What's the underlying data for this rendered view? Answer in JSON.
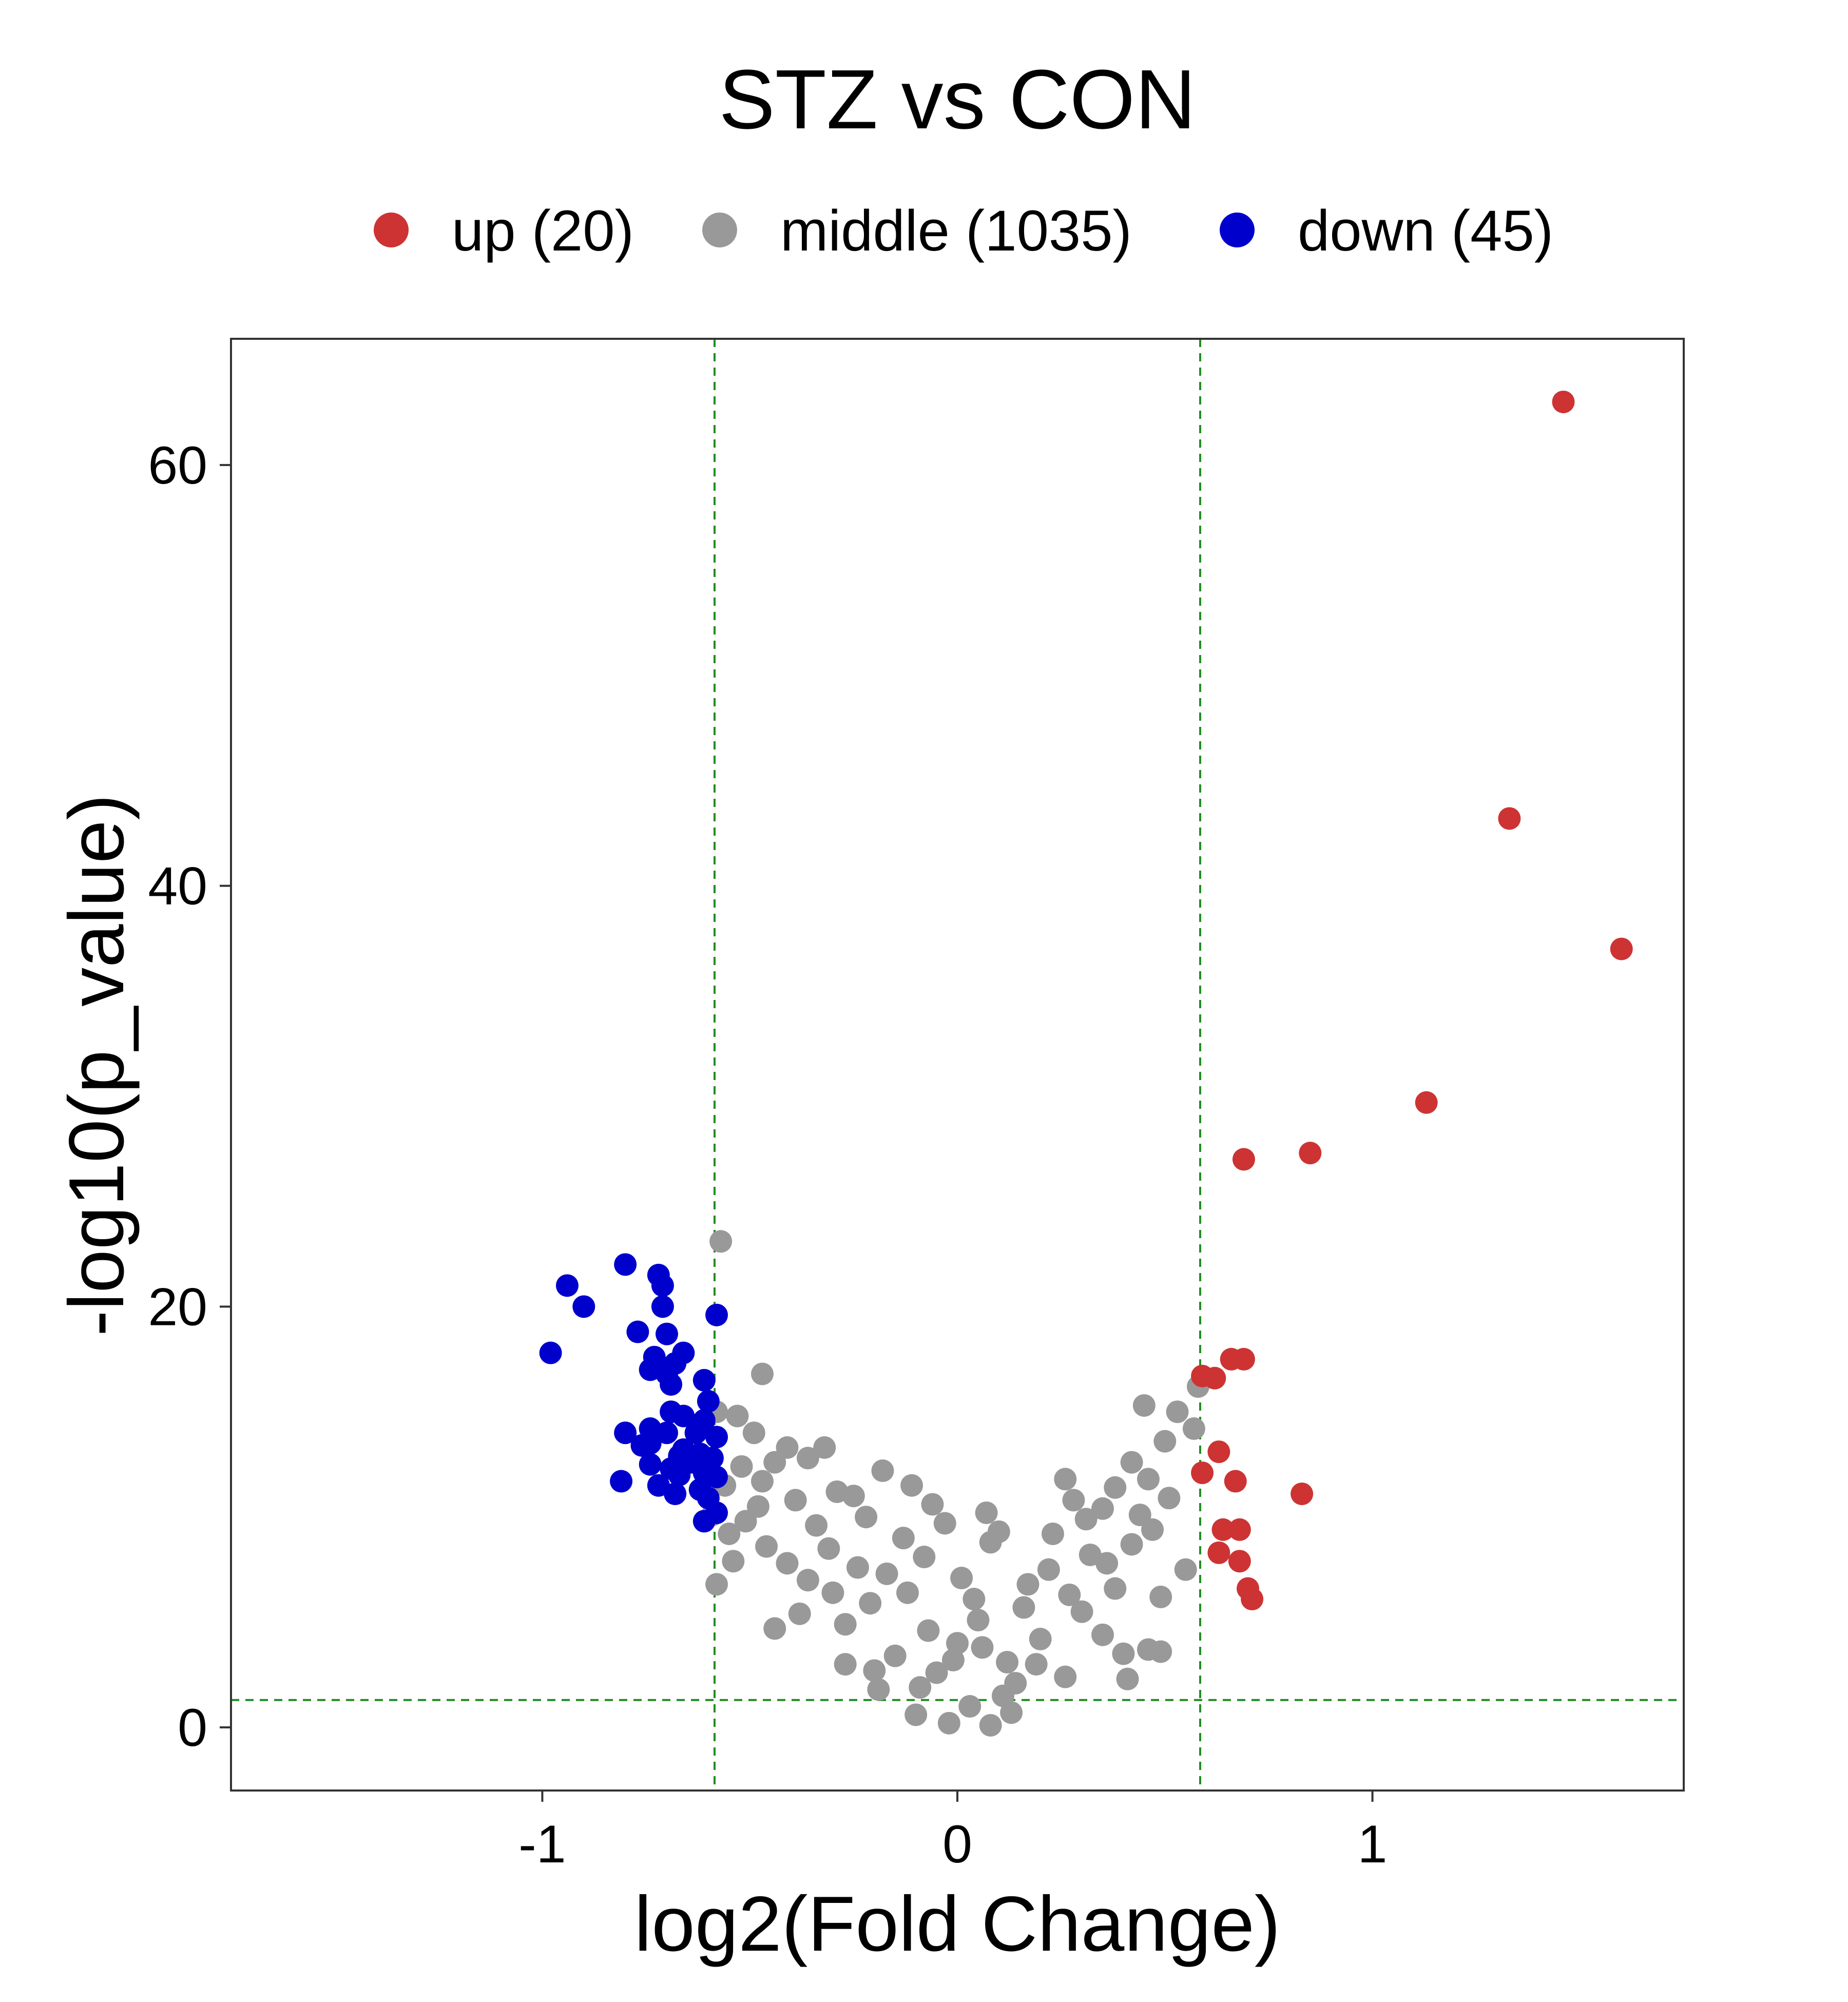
{
  "chart_data": {
    "type": "scatter",
    "title": "STZ vs CON",
    "xlabel": "log2(Fold Change)",
    "ylabel": "-log10(p_value)",
    "xlim": [
      -1.75,
      1.75
    ],
    "ylim": [
      -3,
      66
    ],
    "x_ticks": [
      {
        "value": -1,
        "label": "-1"
      },
      {
        "value": 0,
        "label": "0"
      },
      {
        "value": 1,
        "label": "1"
      }
    ],
    "y_ticks": [
      {
        "value": 0,
        "label": "0"
      },
      {
        "value": 20,
        "label": "20"
      },
      {
        "value": 40,
        "label": "40"
      },
      {
        "value": 60,
        "label": "60"
      }
    ],
    "thresholds": {
      "vertical": [
        -0.585,
        0.585
      ],
      "horizontal": 1.3,
      "color": "#228B22"
    },
    "grid": false,
    "legend_position": "top",
    "series": [
      {
        "name": "up (20)",
        "color": "#CD3333",
        "points": [
          [
            1.46,
            63.0
          ],
          [
            1.33,
            43.2
          ],
          [
            1.6,
            37.0
          ],
          [
            1.13,
            29.7
          ],
          [
            0.85,
            27.3
          ],
          [
            0.69,
            27.0
          ],
          [
            0.66,
            17.5
          ],
          [
            0.69,
            17.5
          ],
          [
            0.62,
            16.6
          ],
          [
            0.59,
            16.7
          ],
          [
            0.63,
            13.1
          ],
          [
            0.59,
            12.1
          ],
          [
            0.67,
            11.7
          ],
          [
            0.83,
            11.1
          ],
          [
            0.64,
            9.4
          ],
          [
            0.68,
            9.4
          ],
          [
            0.63,
            8.3
          ],
          [
            0.68,
            7.9
          ],
          [
            0.7,
            6.6
          ],
          [
            0.71,
            6.1
          ]
        ]
      },
      {
        "name": "middle (1035)",
        "color": "#999999",
        "points": [
          [
            -0.57,
            23.1
          ],
          [
            -0.47,
            16.8
          ],
          [
            -0.58,
            15.0
          ],
          [
            -0.53,
            14.8
          ],
          [
            -0.49,
            14.0
          ],
          [
            -0.41,
            13.3
          ],
          [
            -0.32,
            13.3
          ],
          [
            -0.36,
            12.8
          ],
          [
            -0.44,
            12.6
          ],
          [
            -0.52,
            12.4
          ],
          [
            -0.18,
            12.2
          ],
          [
            -0.56,
            11.5
          ],
          [
            -0.47,
            11.7
          ],
          [
            -0.29,
            11.2
          ],
          [
            -0.11,
            11.5
          ],
          [
            0.26,
            11.8
          ],
          [
            0.28,
            10.8
          ],
          [
            0.45,
            15.3
          ],
          [
            0.58,
            16.2
          ],
          [
            0.53,
            15.0
          ],
          [
            0.57,
            14.2
          ],
          [
            0.5,
            13.6
          ],
          [
            0.42,
            12.6
          ],
          [
            0.46,
            11.8
          ],
          [
            -0.59,
            10.1
          ],
          [
            -0.55,
            9.2
          ],
          [
            -0.54,
            7.9
          ],
          [
            -0.58,
            6.8
          ],
          [
            0.55,
            7.5
          ],
          [
            0.49,
            6.2
          ],
          [
            0.46,
            3.7
          ],
          [
            0.41,
            2.3
          ],
          [
            0.4,
            3.5
          ],
          [
            0.49,
            3.6
          ],
          [
            -0.1,
            0.6
          ],
          [
            -0.02,
            0.2
          ],
          [
            0.08,
            0.1
          ],
          [
            0.03,
            1.0
          ],
          [
            0.13,
            0.7
          ],
          [
            -0.19,
            1.8
          ],
          [
            0.14,
            2.1
          ],
          [
            -0.27,
            3.0
          ],
          [
            0.26,
            2.4
          ],
          [
            -0.44,
            4.7
          ],
          [
            0.35,
            4.4
          ],
          [
            -0.34,
            9.6
          ],
          [
            0.35,
            10.4
          ],
          [
            -0.41,
            7.8
          ],
          [
            0.42,
            8.7
          ],
          [
            0.23,
            9.2
          ],
          [
            -0.22,
            10.0
          ],
          [
            -0.03,
            9.7
          ],
          [
            0.08,
            8.8
          ],
          [
            -0.13,
            9.0
          ],
          [
            0.17,
            6.8
          ],
          [
            -0.21,
            5.9
          ],
          [
            0.05,
            5.1
          ],
          [
            -0.07,
            4.6
          ],
          [
            0.3,
            5.5
          ],
          [
            -0.3,
            6.4
          ],
          [
            0.12,
            3.1
          ],
          [
            -0.15,
            3.4
          ],
          [
            0.22,
            7.5
          ],
          [
            -0.24,
            7.6
          ],
          [
            0.01,
            7.1
          ],
          [
            -0.38,
            5.4
          ],
          [
            0.38,
            6.6
          ],
          [
            0.2,
            4.2
          ],
          [
            -0.05,
            2.6
          ],
          [
            0.06,
            3.8
          ],
          [
            -0.46,
            8.6
          ],
          [
            0.47,
            9.4
          ],
          [
            -0.12,
            6.4
          ],
          [
            0.16,
            5.7
          ],
          [
            -0.01,
            3.2
          ],
          [
            0.32,
            8.2
          ],
          [
            -0.31,
            8.5
          ],
          [
            0.1,
            9.3
          ],
          [
            -0.08,
            8.1
          ],
          [
            0.27,
            6.3
          ],
          [
            -0.27,
            4.9
          ],
          [
            0.04,
            6.1
          ],
          [
            -0.17,
            7.3
          ],
          [
            0.36,
            7.8
          ],
          [
            -0.36,
            7.0
          ],
          [
            0.11,
            1.5
          ],
          [
            -0.09,
            1.9
          ],
          [
            0.19,
            3.0
          ],
          [
            -0.2,
            2.7
          ],
          [
            0.0,
            4.0
          ],
          [
            -0.51,
            9.8
          ],
          [
            0.51,
            10.9
          ],
          [
            -0.48,
            10.5
          ],
          [
            0.44,
            10.1
          ],
          [
            0.38,
            11.4
          ],
          [
            -0.39,
            10.8
          ],
          [
            -0.25,
            11.0
          ],
          [
            0.31,
            9.9
          ],
          [
            -0.06,
            10.6
          ],
          [
            0.07,
            10.2
          ]
        ]
      },
      {
        "name": "down (45)",
        "color": "#0000CD",
        "points": [
          [
            -0.8,
            22.0
          ],
          [
            -0.72,
            21.5
          ],
          [
            -0.71,
            21.0
          ],
          [
            -0.94,
            21.0
          ],
          [
            -0.9,
            20.0
          ],
          [
            -0.71,
            20.0
          ],
          [
            -0.58,
            19.6
          ],
          [
            -0.77,
            18.8
          ],
          [
            -0.7,
            18.7
          ],
          [
            -0.98,
            17.8
          ],
          [
            -0.66,
            17.8
          ],
          [
            -0.73,
            17.6
          ],
          [
            -0.68,
            17.3
          ],
          [
            -0.74,
            17.0
          ],
          [
            -0.7,
            16.8
          ],
          [
            -0.61,
            16.5
          ],
          [
            -0.69,
            16.3
          ],
          [
            -0.6,
            15.5
          ],
          [
            -0.69,
            15.0
          ],
          [
            -0.66,
            14.8
          ],
          [
            -0.61,
            14.6
          ],
          [
            -0.74,
            14.2
          ],
          [
            -0.8,
            14.0
          ],
          [
            -0.63,
            14.0
          ],
          [
            -0.7,
            14.0
          ],
          [
            -0.58,
            13.8
          ],
          [
            -0.74,
            13.5
          ],
          [
            -0.76,
            13.4
          ],
          [
            -0.66,
            13.2
          ],
          [
            -0.62,
            13.0
          ],
          [
            -0.67,
            12.9
          ],
          [
            -0.59,
            12.8
          ],
          [
            -0.64,
            12.6
          ],
          [
            -0.74,
            12.5
          ],
          [
            -0.69,
            12.3
          ],
          [
            -0.61,
            12.1
          ],
          [
            -0.58,
            11.9
          ],
          [
            -0.67,
            12.0
          ],
          [
            -0.81,
            11.7
          ],
          [
            -0.72,
            11.5
          ],
          [
            -0.62,
            11.3
          ],
          [
            -0.68,
            11.1
          ],
          [
            -0.6,
            10.9
          ],
          [
            -0.58,
            10.2
          ],
          [
            -0.61,
            9.8
          ]
        ]
      }
    ]
  }
}
